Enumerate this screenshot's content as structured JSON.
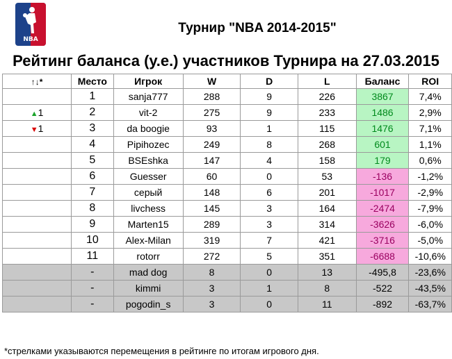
{
  "logo": {
    "text": "NBA",
    "icon": "nba-logo"
  },
  "title": "Турнир \"NBA 2014-2015\"",
  "subtitle": "Рейтинг баланса (у.е.) участников Турнира на 27.03.2015",
  "columns": {
    "move": "↑↓*",
    "place": "Место",
    "player": "Игрок",
    "w": "W",
    "d": "D",
    "l": "L",
    "balance": "Баланс",
    "roi": "ROI"
  },
  "rows": [
    {
      "move": "",
      "move_dir": "",
      "place": "1",
      "player": "sanja777",
      "w": "288",
      "d": "9",
      "l": "226",
      "balance": "3867",
      "roi": "7,4%",
      "kind": "pos"
    },
    {
      "move": "1",
      "move_dir": "up",
      "place": "2",
      "player": "vit-2",
      "w": "275",
      "d": "9",
      "l": "233",
      "balance": "1486",
      "roi": "2,9%",
      "kind": "pos"
    },
    {
      "move": "1",
      "move_dir": "down",
      "place": "3",
      "player": "da boogie",
      "w": "93",
      "d": "1",
      "l": "115",
      "balance": "1476",
      "roi": "7,1%",
      "kind": "pos"
    },
    {
      "move": "",
      "move_dir": "",
      "place": "4",
      "player": "Pipihozec",
      "w": "249",
      "d": "8",
      "l": "268",
      "balance": "601",
      "roi": "1,1%",
      "kind": "pos"
    },
    {
      "move": "",
      "move_dir": "",
      "place": "5",
      "player": "BSEshka",
      "w": "147",
      "d": "4",
      "l": "158",
      "balance": "179",
      "roi": "0,6%",
      "kind": "pos"
    },
    {
      "move": "",
      "move_dir": "",
      "place": "6",
      "player": "Guesser",
      "w": "60",
      "d": "0",
      "l": "53",
      "balance": "-136",
      "roi": "-1,2%",
      "kind": "neg"
    },
    {
      "move": "",
      "move_dir": "",
      "place": "7",
      "player": "серый",
      "w": "148",
      "d": "6",
      "l": "201",
      "balance": "-1017",
      "roi": "-2,9%",
      "kind": "neg"
    },
    {
      "move": "",
      "move_dir": "",
      "place": "8",
      "player": "livchess",
      "w": "145",
      "d": "3",
      "l": "164",
      "balance": "-2474",
      "roi": "-7,9%",
      "kind": "neg"
    },
    {
      "move": "",
      "move_dir": "",
      "place": "9",
      "player": "Marten15",
      "w": "289",
      "d": "3",
      "l": "314",
      "balance": "-3626",
      "roi": "-6,0%",
      "kind": "neg"
    },
    {
      "move": "",
      "move_dir": "",
      "place": "10",
      "player": "Alex-Milan",
      "w": "319",
      "d": "7",
      "l": "421",
      "balance": "-3716",
      "roi": "-5,0%",
      "kind": "neg"
    },
    {
      "move": "",
      "move_dir": "",
      "place": "11",
      "player": "rotorr",
      "w": "272",
      "d": "5",
      "l": "351",
      "balance": "-6688",
      "roi": "-10,6%",
      "kind": "neg"
    },
    {
      "move": "",
      "move_dir": "",
      "place": "-",
      "player": "mad dog",
      "w": "8",
      "d": "0",
      "l": "13",
      "balance": "-495,8",
      "roi": "-23,6%",
      "kind": "grey"
    },
    {
      "move": "",
      "move_dir": "",
      "place": "-",
      "player": "kimmi",
      "w": "3",
      "d": "1",
      "l": "8",
      "balance": "-522",
      "roi": "-43,5%",
      "kind": "grey"
    },
    {
      "move": "",
      "move_dir": "",
      "place": "-",
      "player": "pogodin_s",
      "w": "3",
      "d": "0",
      "l": "11",
      "balance": "-892",
      "roi": "-63,7%",
      "kind": "grey"
    }
  ],
  "footnote": "*стрелками указываются перемещения в рейтинге по итогам игрового дня.",
  "colors": {
    "positive_bg": "#b8f5c3",
    "positive_text": "#008a1c",
    "negative_bg": "#f7a9dd",
    "negative_text": "#9a0060",
    "excluded_bg": "#c8c8c8",
    "arrow_up": "#1aa32a",
    "arrow_down": "#d80000"
  }
}
